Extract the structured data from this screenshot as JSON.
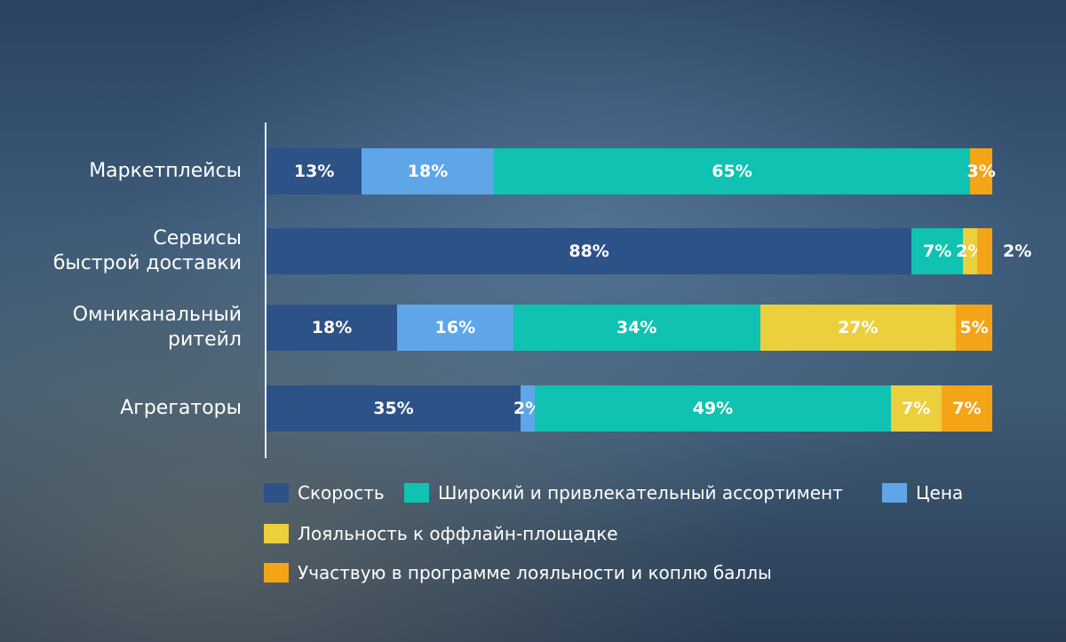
{
  "chart_data": {
    "type": "bar",
    "orientation": "horizontal",
    "stacked": true,
    "unit": "%",
    "categories": [
      "Маркетплейсы",
      "Сервисы\nбыстрой доставки",
      "Омниканальный\nритейл",
      "Агрегаторы"
    ],
    "series": [
      {
        "name": "Скорость",
        "color": "#2d5288",
        "values": [
          13,
          88,
          18,
          35
        ]
      },
      {
        "name": "Цена",
        "color": "#5ea6e8",
        "values": [
          18,
          0,
          16,
          2
        ]
      },
      {
        "name": "Широкий и привлекательный ассортимент",
        "color": "#0fc2b1",
        "values": [
          65,
          7,
          34,
          49
        ]
      },
      {
        "name": "Лояльность к оффлайн-площадке",
        "color": "#ebcf3d",
        "values": [
          0,
          2,
          27,
          7
        ]
      },
      {
        "name": "Участвую в программе лояльности и коплю баллы",
        "color": "#f4a417",
        "values": [
          3,
          2,
          5,
          7
        ]
      }
    ],
    "legend_order": [
      0,
      2,
      1,
      3,
      4
    ],
    "legend_position": "bottom",
    "grid": false
  }
}
